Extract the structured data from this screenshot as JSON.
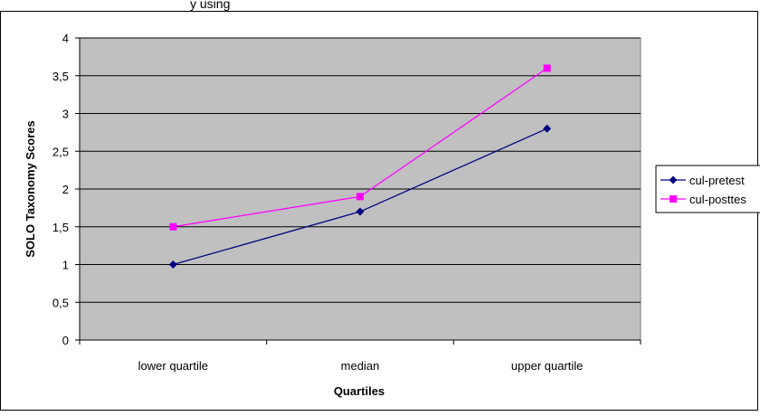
{
  "chart_data": {
    "type": "line",
    "title": "",
    "xlabel": "Quartiles",
    "ylabel": "SOLO Taxonomy Scores",
    "categories": [
      "lower quartile",
      "median",
      "upper quartile"
    ],
    "ylim": [
      0,
      4
    ],
    "yticks": [
      "0",
      "0,5",
      "1",
      "1,5",
      "2",
      "2,5",
      "3",
      "3,5",
      "4"
    ],
    "ytick_values": [
      0,
      0.5,
      1,
      1.5,
      2,
      2.5,
      3,
      3.5,
      4
    ],
    "grid": true,
    "legend_position": "right",
    "plot_background": "#c0c0c0",
    "series": [
      {
        "name": "cul-pretest",
        "values": [
          1.0,
          1.7,
          2.8
        ],
        "color": "#000080",
        "marker": "diamond"
      },
      {
        "name": "cul-posttes",
        "values": [
          1.5,
          1.9,
          3.6
        ],
        "color": "#ff00ff",
        "marker": "square"
      }
    ]
  },
  "header_fragment": "y using"
}
